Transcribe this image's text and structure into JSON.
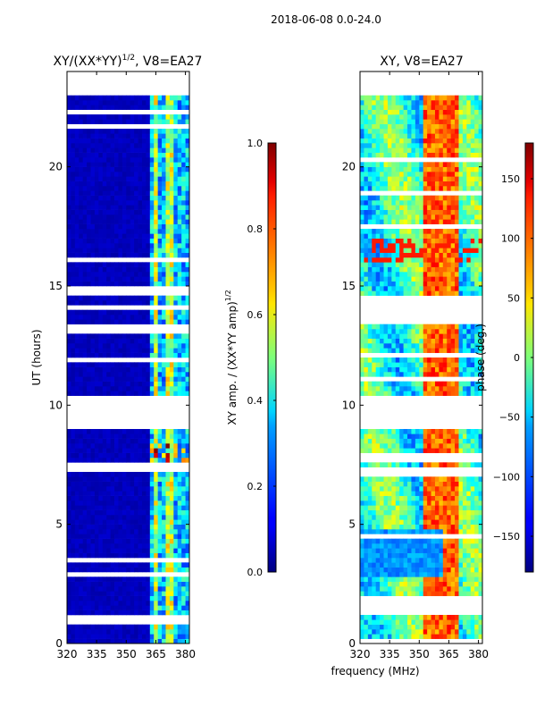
{
  "figure": {
    "suptitle": "2018-06-08 0.0-24.0",
    "common_xlabel": "frequency (MHz)"
  },
  "chart_data": [
    {
      "type": "heatmap",
      "title_main": "XY/(XX*YY)",
      "title_sup": "1/2",
      "title_rest": ", V8=EA27",
      "xlabel": "",
      "ylabel": "UT (hours)",
      "xlim": [
        320,
        382
      ],
      "ylim": [
        0,
        24
      ],
      "x_ticks": [
        320,
        335,
        350,
        365,
        380
      ],
      "y_ticks": [
        0,
        5,
        10,
        15,
        20
      ],
      "x_tick_labels": [
        "320",
        "335",
        "350",
        "365",
        "380"
      ],
      "y_tick_labels": [
        "0",
        "5",
        "10",
        "15",
        "20"
      ],
      "colormap": "jet",
      "colorbar": {
        "label_main": "XY amp. / (XX*YY amp)",
        "label_sup": "1/2",
        "range": [
          0,
          1
        ],
        "ticks": [
          0.0,
          0.2,
          0.4,
          0.6,
          0.8,
          1.0
        ],
        "tick_labels": [
          "0.0",
          "0.2",
          "0.4",
          "0.6",
          "0.8",
          "1.0"
        ]
      },
      "data_time_range": [
        0,
        23
      ],
      "gap_hours": [
        [
          9.1,
          10.4
        ],
        [
          13.0,
          13.5
        ],
        [
          14.7,
          15.1
        ]
      ],
      "note": "values mostly ~0.05 below 362 MHz; 362-382 MHz band shows ~0.2-0.6 with peaks ~0.75"
    },
    {
      "type": "heatmap",
      "title": "XY, V8=EA27",
      "xlabel": "",
      "ylabel": "",
      "xlim": [
        320,
        382
      ],
      "ylim": [
        0,
        24
      ],
      "x_ticks": [
        320,
        335,
        350,
        365,
        380
      ],
      "y_ticks": [
        0,
        5,
        10,
        15,
        20
      ],
      "x_tick_labels": [
        "320",
        "335",
        "350",
        "365",
        "380"
      ],
      "y_tick_labels": [
        "0",
        "5",
        "10",
        "15",
        "20"
      ],
      "colormap": "jet",
      "colorbar": {
        "label": "phase (deg.)",
        "range": [
          -180,
          180
        ],
        "ticks": [
          -150,
          -100,
          -50,
          0,
          50,
          100,
          150
        ],
        "tick_labels": [
          "−150",
          "−100",
          "−50",
          "0",
          "50",
          "100",
          "150"
        ]
      },
      "data_time_range": [
        0,
        23
      ],
      "gap_hours": [
        [
          9.1,
          10.4
        ],
        [
          13.5,
          14.7
        ]
      ],
      "note": "phase pattern: orange/red near 355-370 MHz, blue band 3-5 h, green/cyan elsewhere"
    }
  ],
  "colors": {
    "jet_low": "#00007f",
    "jet_high": "#7f0000",
    "white": "#ffffff"
  }
}
